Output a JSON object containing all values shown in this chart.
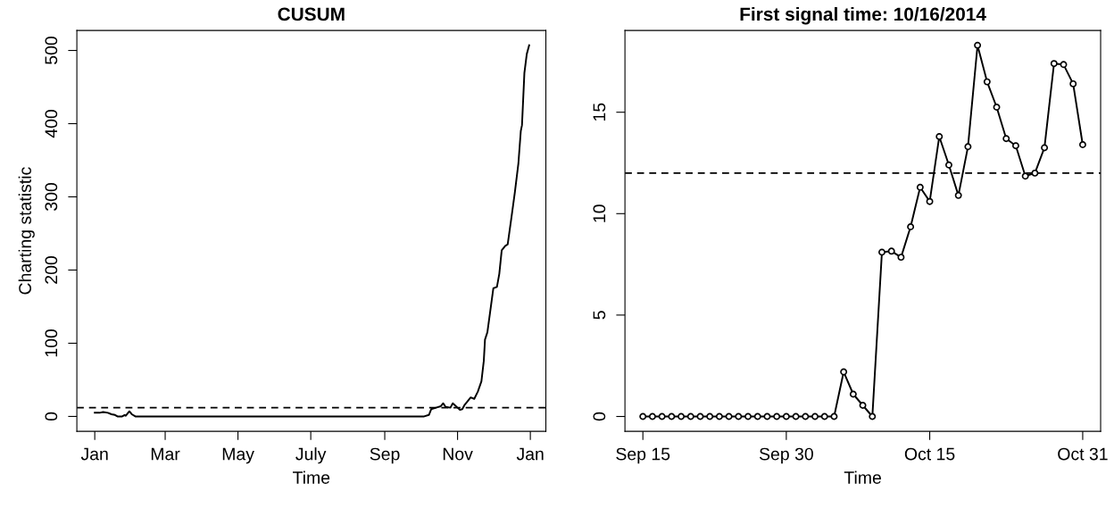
{
  "chart_data": [
    {
      "type": "line",
      "title": "CUSUM",
      "xlabel": "Time",
      "ylabel": "Charting statistic",
      "x": [
        "2014-01-01",
        "2014-01-05",
        "2014-01-08",
        "2014-01-12",
        "2014-01-15",
        "2014-01-18",
        "2014-01-20",
        "2014-01-24",
        "2014-01-26",
        "2014-01-27",
        "2014-01-30",
        "2014-02-01",
        "2014-02-04",
        "2014-10-04",
        "2014-10-08",
        "2014-10-10",
        "2014-10-14",
        "2014-10-18",
        "2014-10-20",
        "2014-10-22",
        "2014-10-26",
        "2014-10-28",
        "2014-11-01",
        "2014-11-03",
        "2014-11-05",
        "2014-11-07",
        "2014-11-09",
        "2014-11-12",
        "2014-11-15",
        "2014-11-18",
        "2014-11-21",
        "2014-11-23",
        "2014-11-24",
        "2014-11-26",
        "2014-11-29",
        "2014-12-01",
        "2014-12-04",
        "2014-12-06",
        "2014-12-08",
        "2014-12-11",
        "2014-12-13",
        "2014-12-16",
        "2014-12-19",
        "2014-12-22",
        "2014-12-24",
        "2014-12-25",
        "2014-12-27",
        "2014-12-29",
        "2014-12-31"
      ],
      "series": [
        {
          "color": "#000000",
          "values": [
            5,
            5,
            6,
            5,
            3,
            2,
            0,
            0,
            2,
            1,
            7,
            3,
            0,
            0,
            2,
            10,
            12,
            14,
            18,
            13,
            12,
            18,
            12,
            9,
            10,
            16,
            20,
            26,
            24,
            34,
            48,
            76,
            105,
            115,
            151,
            175,
            177,
            195,
            227,
            233,
            235,
            270,
            306,
            346,
            390,
            398,
            469,
            495,
            507
          ]
        }
      ],
      "xlim": [
        "2013-12-17",
        "2015-01-14"
      ],
      "xticks": [
        {
          "value": "2014-01-01",
          "label": "Jan"
        },
        {
          "value": "2014-03-01",
          "label": "Mar"
        },
        {
          "value": "2014-05-01",
          "label": "May"
        },
        {
          "value": "2014-07-01",
          "label": "July"
        },
        {
          "value": "2014-09-01",
          "label": "Sep"
        },
        {
          "value": "2014-11-01",
          "label": "Nov"
        },
        {
          "value": "2015-01-01",
          "label": "Jan"
        }
      ],
      "ylim": [
        -20.3,
        527.3
      ],
      "yticks": [
        0,
        100,
        200,
        300,
        400,
        500
      ],
      "ref_lines": [
        {
          "axis": "y",
          "value": 12,
          "line_style": "dashed"
        }
      ],
      "marker": "none",
      "line_style": "solid",
      "grid": false,
      "legend": false
    },
    {
      "type": "line",
      "title": "First signal time: 10/16/2014",
      "xlabel": "Time",
      "x": [
        "2014-09-15",
        "2014-09-16",
        "2014-09-17",
        "2014-09-18",
        "2014-09-19",
        "2014-09-20",
        "2014-09-21",
        "2014-09-22",
        "2014-09-23",
        "2014-09-24",
        "2014-09-25",
        "2014-09-26",
        "2014-09-27",
        "2014-09-28",
        "2014-09-29",
        "2014-09-30",
        "2014-10-01",
        "2014-10-02",
        "2014-10-03",
        "2014-10-04",
        "2014-10-05",
        "2014-10-06",
        "2014-10-07",
        "2014-10-08",
        "2014-10-09",
        "2014-10-10",
        "2014-10-11",
        "2014-10-12",
        "2014-10-13",
        "2014-10-14",
        "2014-10-15",
        "2014-10-16",
        "2014-10-17",
        "2014-10-18",
        "2014-10-19",
        "2014-10-20",
        "2014-10-21",
        "2014-10-22",
        "2014-10-23",
        "2014-10-24",
        "2014-10-25",
        "2014-10-26",
        "2014-10-27",
        "2014-10-28",
        "2014-10-29",
        "2014-10-30",
        "2014-10-31"
      ],
      "series": [
        {
          "color": "#000000",
          "values": [
            0,
            0,
            0,
            0,
            0,
            0,
            0,
            0,
            0,
            0,
            0,
            0,
            0,
            0,
            0,
            0,
            0,
            0,
            0,
            0,
            0,
            2.2,
            1.1,
            0.55,
            0,
            8.1,
            8.15,
            7.85,
            9.35,
            11.3,
            10.6,
            13.8,
            12.4,
            10.9,
            13.3,
            18.3,
            16.5,
            15.25,
            13.7,
            13.35,
            11.85,
            12.0,
            13.25,
            17.4,
            17.35,
            16.4,
            13.4
          ]
        }
      ],
      "xlim": [
        "2014-09-13T03:00",
        "2014-11-01T21:00"
      ],
      "xticks": [
        {
          "value": "2014-09-15",
          "label": "Sep 15"
        },
        {
          "value": "2014-09-30",
          "label": "Sep 30"
        },
        {
          "value": "2014-10-15",
          "label": "Oct 15"
        },
        {
          "value": "2014-10-31",
          "label": "Oct 31"
        }
      ],
      "ylim": [
        -0.73,
        19.03
      ],
      "yticks": [
        0,
        5,
        10,
        15
      ],
      "ref_lines": [
        {
          "axis": "y",
          "value": 12,
          "line_style": "dashed"
        }
      ],
      "marker": "circle",
      "line_style": "solid",
      "grid": false,
      "legend": false
    }
  ]
}
